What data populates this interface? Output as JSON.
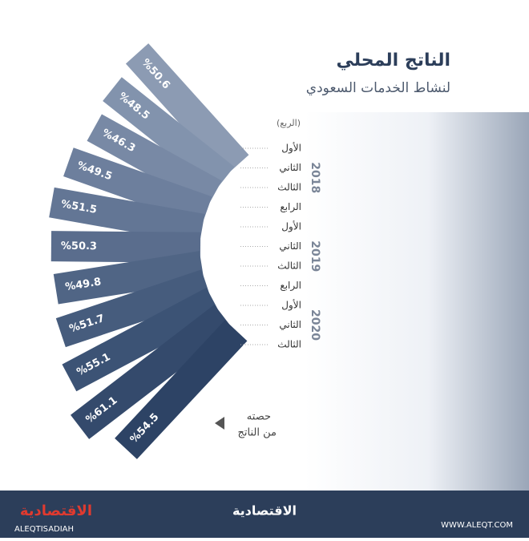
{
  "chart_data": {
    "type": "radial-bar",
    "title": "الناتج المحلي",
    "subtitle": "لنشاط الخدمات السعودي",
    "category_header": "(الربع)",
    "groups": [
      {
        "name": "2018",
        "categories": [
          "الأول",
          "الثاني",
          "الثالث",
          "الرابع"
        ]
      },
      {
        "name": "2019",
        "categories": [
          "الأول",
          "الثاني",
          "الثالث",
          "الرابع"
        ]
      },
      {
        "name": "2020",
        "categories": [
          "الأول",
          "الثاني",
          "الثالث"
        ]
      }
    ],
    "values": [
      50.6,
      48.5,
      46.3,
      49.5,
      51.5,
      50.3,
      49.8,
      51.7,
      55.1,
      61.1,
      54.5
    ],
    "value_labels": [
      "%50.6",
      "%48.5",
      "%46.3",
      "%49.5",
      "%51.5",
      "%50.3",
      "%49.8",
      "%51.7",
      "%55.1",
      "%61.1",
      "%54.5"
    ],
    "colors": [
      "#8c9bb3",
      "#8293ad",
      "#7889a5",
      "#6d7f9d",
      "#637695",
      "#5a6d8d",
      "#506585",
      "#465c7d",
      "#3c5375",
      "#344a6c",
      "#2d4365"
    ],
    "legend": [
      "حصته",
      "من الناتج"
    ],
    "footer": {
      "brand": "الاقتصادية",
      "brand_latin": "ALEQTISADIAH",
      "center": "الاقتصادية",
      "site": "WWW.ALEQT.COM"
    }
  }
}
